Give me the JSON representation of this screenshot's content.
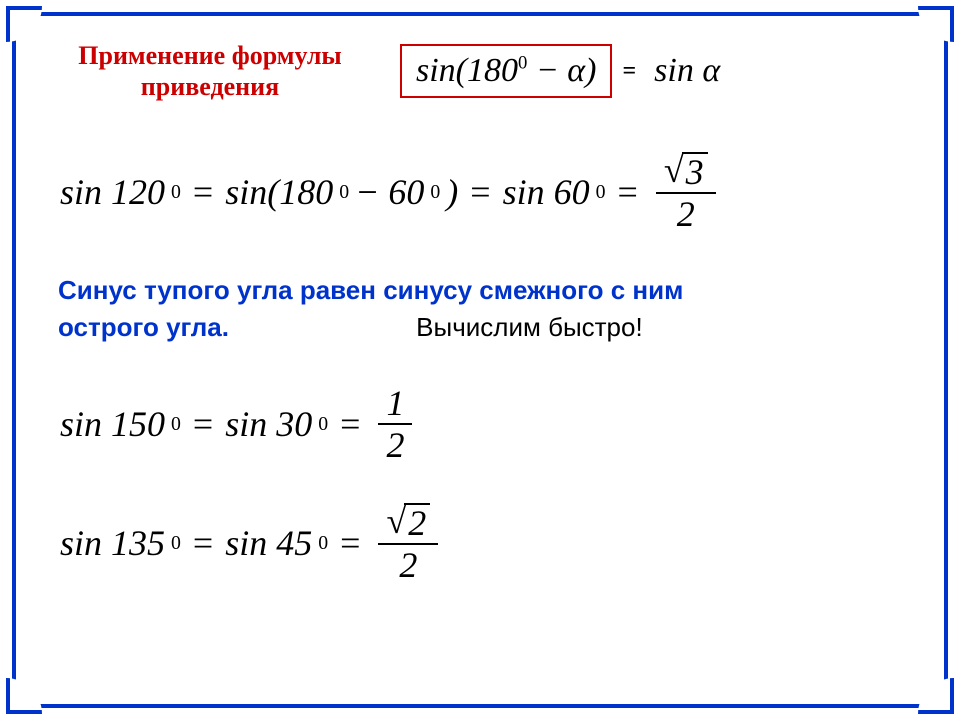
{
  "header": {
    "caption_line1": "Применение формулы",
    "caption_line2": "приведения",
    "formula_lhs": "sin(180",
    "formula_lhs_deg": "0",
    "formula_lhs_tail": " − α)",
    "equals": "=",
    "formula_rhs": "sin α"
  },
  "example1": {
    "t1": "sin 120",
    "d1": "0",
    "eq1": "=",
    "t2": "sin(180",
    "d2": "0",
    "t3": " − 60",
    "d3": "0",
    "t4": ")",
    "eq2": "=",
    "t5": "sin 60",
    "d5": "0",
    "eq3": "=",
    "sqrt_num": "3",
    "den": "2"
  },
  "statement": {
    "line1": "Синус тупого угла равен синусу смежного с ним",
    "line2a": "острого угла.",
    "line2b": "Вычислим быстро!"
  },
  "example2": {
    "t1": "sin 150",
    "d1": "0",
    "eq1": "=",
    "t2": "sin 30",
    "d2": "0",
    "eq2": "=",
    "num": "1",
    "den": "2"
  },
  "example3": {
    "t1": "sin 135",
    "d1": "0",
    "eq1": "=",
    "t2": "sin 45",
    "d2": "0",
    "eq2": "=",
    "sqrt_num": "2",
    "den": "2"
  },
  "colors": {
    "frame": "#0033cc",
    "red": "#cc0000",
    "text": "#000000"
  }
}
